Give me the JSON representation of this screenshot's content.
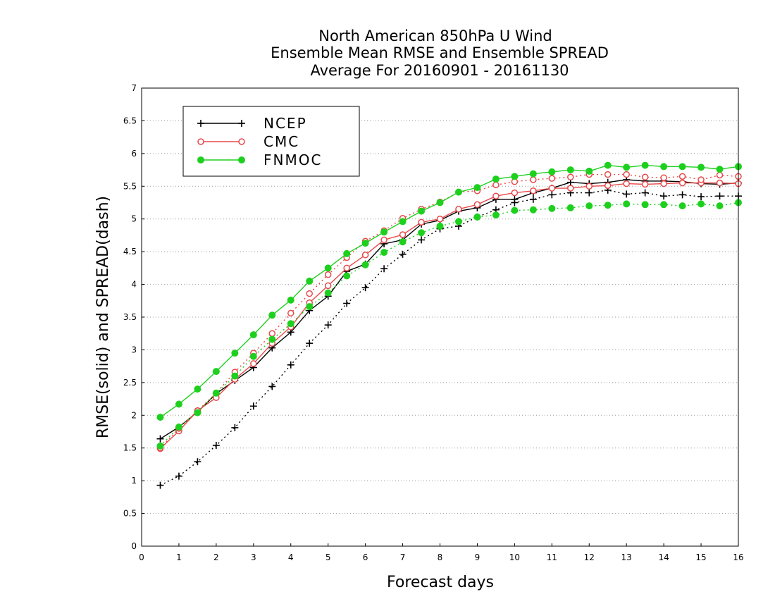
{
  "chart_data": {
    "type": "line",
    "title_lines": [
      "North American 850hPa U Wind",
      "Ensemble Mean RMSE and Ensemble SPREAD",
      "Average For 20160901 - 20161130"
    ],
    "xlabel": "Forecast days",
    "ylabel": "RMSE(solid) and SPREAD(dash)",
    "xlim": [
      0,
      16
    ],
    "ylim": [
      0,
      7
    ],
    "x_ticks": [
      "0",
      "1",
      "2",
      "3",
      "4",
      "5",
      "6",
      "7",
      "8",
      "9",
      "10",
      "11",
      "12",
      "13",
      "14",
      "15",
      "16"
    ],
    "y_ticks": [
      "0",
      "0.5",
      "1",
      "1.5",
      "2",
      "2.5",
      "3",
      "3.5",
      "4",
      "4.5",
      "5",
      "5.5",
      "6",
      "6.5",
      "7"
    ],
    "grid": "horizontal dotted",
    "legend_position": "top-left",
    "x": [
      0.5,
      1,
      1.5,
      2,
      2.5,
      3,
      3.5,
      4,
      4.5,
      5,
      5.5,
      6,
      6.5,
      7,
      7.5,
      8,
      8.5,
      9,
      9.5,
      10,
      10.5,
      11,
      11.5,
      12,
      12.5,
      13,
      13.5,
      14,
      14.5,
      15,
      15.5,
      16
    ],
    "series": [
      {
        "name": "NCEP",
        "metric": "RMSE",
        "line": "solid",
        "marker": "plus",
        "color": "#000000",
        "values": [
          1.64,
          1.82,
          2.05,
          2.33,
          2.53,
          2.73,
          3.03,
          3.27,
          3.6,
          3.82,
          4.2,
          4.31,
          4.62,
          4.68,
          4.92,
          4.98,
          5.12,
          5.17,
          5.3,
          5.3,
          5.4,
          5.47,
          5.56,
          5.54,
          5.56,
          5.6,
          5.58,
          5.58,
          5.57,
          5.54,
          5.53,
          5.55
        ]
      },
      {
        "name": "NCEP",
        "metric": "SPREAD",
        "line": "dash",
        "marker": "plus",
        "color": "#000000",
        "values": [
          0.93,
          1.07,
          1.29,
          1.54,
          1.81,
          2.14,
          2.44,
          2.77,
          3.1,
          3.38,
          3.71,
          3.95,
          4.24,
          4.46,
          4.68,
          4.85,
          4.89,
          5.03,
          5.14,
          5.25,
          5.3,
          5.37,
          5.4,
          5.4,
          5.44,
          5.38,
          5.4,
          5.35,
          5.37,
          5.34,
          5.35,
          5.35
        ]
      },
      {
        "name": "CMC",
        "metric": "RMSE",
        "line": "solid",
        "marker": "open-circle",
        "color": "#e8494b",
        "values": [
          1.49,
          1.76,
          2.07,
          2.27,
          2.55,
          2.79,
          3.1,
          3.35,
          3.72,
          3.98,
          4.25,
          4.45,
          4.68,
          4.76,
          4.95,
          5.0,
          5.15,
          5.22,
          5.35,
          5.4,
          5.43,
          5.47,
          5.47,
          5.5,
          5.51,
          5.54,
          5.53,
          5.54,
          5.55,
          5.55,
          5.55,
          5.54
        ]
      },
      {
        "name": "CMC",
        "metric": "SPREAD",
        "line": "dash",
        "marker": "open-circle",
        "color": "#e8494b",
        "values": [
          1.5,
          1.8,
          2.07,
          2.34,
          2.66,
          2.95,
          3.25,
          3.56,
          3.86,
          4.15,
          4.41,
          4.66,
          4.82,
          5.01,
          5.15,
          5.26,
          5.41,
          5.43,
          5.52,
          5.57,
          5.6,
          5.62,
          5.64,
          5.68,
          5.68,
          5.68,
          5.64,
          5.63,
          5.65,
          5.6,
          5.67,
          5.65
        ]
      },
      {
        "name": "FNMOC",
        "metric": "RMSE",
        "line": "solid",
        "marker": "filled-circle",
        "color": "#1ed01e",
        "values": [
          1.97,
          2.17,
          2.4,
          2.67,
          2.95,
          3.23,
          3.53,
          3.76,
          4.05,
          4.25,
          4.47,
          4.63,
          4.8,
          4.96,
          5.12,
          5.25,
          5.41,
          5.48,
          5.61,
          5.65,
          5.69,
          5.72,
          5.75,
          5.73,
          5.82,
          5.79,
          5.82,
          5.8,
          5.8,
          5.79,
          5.76,
          5.8
        ]
      },
      {
        "name": "FNMOC",
        "metric": "SPREAD",
        "line": "dash",
        "marker": "filled-circle",
        "color": "#1ed01e",
        "values": [
          1.53,
          1.82,
          2.04,
          2.34,
          2.6,
          2.9,
          3.16,
          3.4,
          3.66,
          3.87,
          4.13,
          4.3,
          4.49,
          4.65,
          4.79,
          4.89,
          4.96,
          5.03,
          5.06,
          5.13,
          5.14,
          5.16,
          5.17,
          5.2,
          5.21,
          5.23,
          5.22,
          5.22,
          5.2,
          5.23,
          5.2,
          5.25
        ]
      }
    ],
    "legend": [
      "NCEP",
      "CMC",
      "FNMOC"
    ]
  }
}
